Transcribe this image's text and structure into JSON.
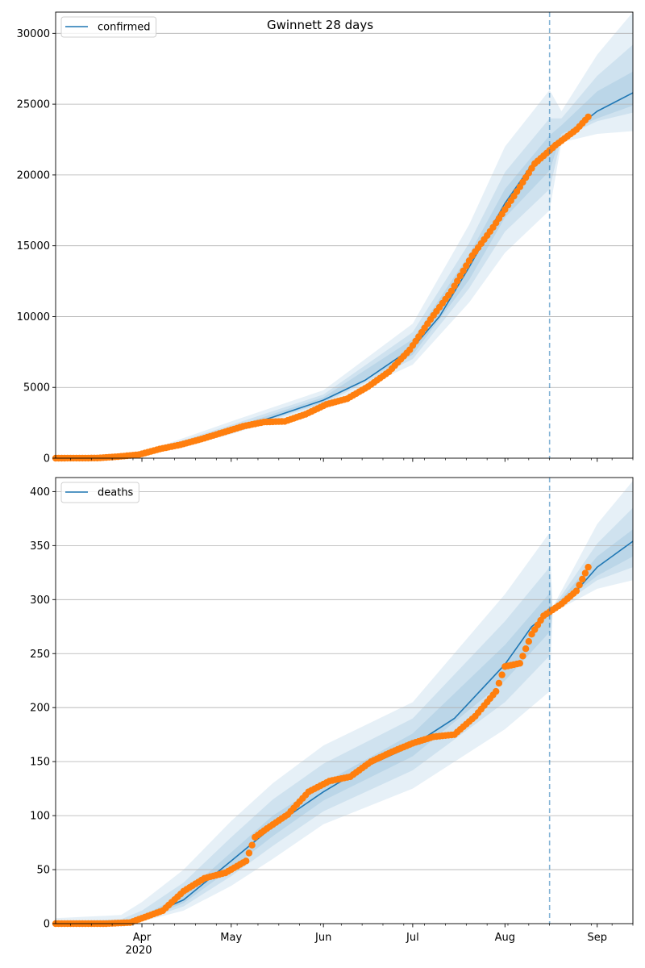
{
  "figure": {
    "title": "Gwinnett 28 days"
  },
  "colors": {
    "model": "#1f77b4",
    "observed": "#ff7f0e",
    "band": "#1f77b4",
    "grid": "#b0b0b0",
    "cutoff": "#1f77b4"
  },
  "x_axis": {
    "start": "2020-03-03",
    "end": "2020-09-13",
    "month_ticks": [
      {
        "date": "2020-04-01",
        "label": "Apr"
      },
      {
        "date": "2020-05-01",
        "label": "May"
      },
      {
        "date": "2020-06-01",
        "label": "Jun"
      },
      {
        "date": "2020-07-01",
        "label": "Jul"
      },
      {
        "date": "2020-08-01",
        "label": "Aug"
      },
      {
        "date": "2020-09-01",
        "label": "Sep"
      }
    ],
    "year_label": "2020",
    "forecast_start": "2020-08-16"
  },
  "chart_data": [
    {
      "type": "line",
      "legend": "confirmed",
      "legend_position": "top-left",
      "grid": "horizontal",
      "ylim": [
        0,
        31500
      ],
      "yticks": [
        0,
        5000,
        10000,
        15000,
        20000,
        25000,
        30000
      ],
      "model": {
        "x": [
          "2020-03-03",
          "2020-03-20",
          "2020-04-01",
          "2020-04-15",
          "2020-05-01",
          "2020-05-15",
          "2020-06-01",
          "2020-06-15",
          "2020-07-01",
          "2020-07-10",
          "2020-07-20",
          "2020-08-01",
          "2020-08-10",
          "2020-08-16",
          "2020-08-23",
          "2020-09-01",
          "2020-09-13"
        ],
        "y": [
          0,
          20,
          250,
          900,
          2000,
          2900,
          4100,
          5500,
          7800,
          10000,
          13500,
          18000,
          20700,
          21500,
          23000,
          24500,
          25800
        ]
      },
      "bands": [
        {
          "x": [
            "2020-03-03",
            "2020-04-01",
            "2020-05-01",
            "2020-06-01",
            "2020-07-01",
            "2020-07-20",
            "2020-08-01",
            "2020-08-16",
            "2020-08-20",
            "2020-09-01",
            "2020-09-13"
          ],
          "lower": [
            0,
            150,
            1700,
            3700,
            6600,
            11000,
            14500,
            17500,
            22300,
            22900,
            23100
          ],
          "upper": [
            0,
            400,
            2600,
            4800,
            9500,
            16500,
            22000,
            26000,
            24500,
            28500,
            31500
          ]
        },
        {
          "x": [
            "2020-03-03",
            "2020-04-01",
            "2020-05-01",
            "2020-06-01",
            "2020-07-01",
            "2020-07-20",
            "2020-08-01",
            "2020-08-16",
            "2020-08-20",
            "2020-09-01",
            "2020-09-13"
          ],
          "lower": [
            0,
            180,
            1800,
            3850,
            7000,
            12000,
            16000,
            19000,
            22600,
            23800,
            24400
          ],
          "upper": [
            0,
            340,
            2350,
            4500,
            8900,
            15200,
            20200,
            24000,
            24000,
            27000,
            29200
          ]
        },
        {
          "x": [
            "2020-03-03",
            "2020-04-01",
            "2020-05-01",
            "2020-06-01",
            "2020-07-01",
            "2020-07-20",
            "2020-08-01",
            "2020-08-16",
            "2020-08-20",
            "2020-09-01",
            "2020-09-13"
          ],
          "lower": [
            0,
            210,
            1900,
            3950,
            7300,
            12600,
            17000,
            20300,
            22900,
            24000,
            24900
          ],
          "upper": [
            0,
            300,
            2150,
            4300,
            8400,
            14400,
            19000,
            22800,
            23500,
            25900,
            27300
          ]
        }
      ],
      "observed": {
        "x": [
          "2020-03-03",
          "2020-03-10",
          "2020-03-17",
          "2020-03-24",
          "2020-03-31",
          "2020-04-07",
          "2020-04-14",
          "2020-04-21",
          "2020-04-28",
          "2020-05-05",
          "2020-05-12",
          "2020-05-19",
          "2020-05-26",
          "2020-06-02",
          "2020-06-09",
          "2020-06-16",
          "2020-06-23",
          "2020-06-30",
          "2020-07-07",
          "2020-07-14",
          "2020-07-21",
          "2020-07-28",
          "2020-08-04",
          "2020-08-11",
          "2020-08-18",
          "2020-08-25",
          "2020-08-29"
        ],
        "y": [
          0,
          5,
          10,
          110,
          250,
          650,
          950,
          1350,
          1800,
          2250,
          2550,
          2600,
          3100,
          3800,
          4200,
          5050,
          6100,
          7650,
          9800,
          11800,
          14300,
          16300,
          18500,
          20800,
          22100,
          23200,
          24100
        ]
      }
    },
    {
      "type": "line",
      "legend": "deaths",
      "legend_position": "top-left",
      "grid": "horizontal",
      "ylim": [
        0,
        413
      ],
      "yticks": [
        0,
        50,
        100,
        150,
        200,
        250,
        300,
        350,
        400
      ],
      "model": {
        "x": [
          "2020-03-03",
          "2020-03-25",
          "2020-04-01",
          "2020-04-15",
          "2020-05-01",
          "2020-05-15",
          "2020-06-01",
          "2020-06-15",
          "2020-07-01",
          "2020-07-15",
          "2020-08-01",
          "2020-08-10",
          "2020-08-16",
          "2020-08-24",
          "2020-09-01",
          "2020-09-13"
        ],
        "y": [
          0,
          1,
          5,
          22,
          58,
          90,
          122,
          145,
          165,
          190,
          240,
          275,
          288,
          305,
          330,
          354
        ]
      },
      "bands": [
        {
          "x": [
            "2020-03-03",
            "2020-03-25",
            "2020-04-01",
            "2020-04-15",
            "2020-05-01",
            "2020-05-15",
            "2020-06-01",
            "2020-07-01",
            "2020-08-01",
            "2020-08-16",
            "2020-08-17",
            "2020-09-01",
            "2020-09-13"
          ],
          "lower": [
            0,
            0,
            2,
            12,
            35,
            60,
            92,
            125,
            180,
            215,
            288,
            310,
            318
          ],
          "upper": [
            5,
            8,
            20,
            50,
            95,
            130,
            165,
            205,
            305,
            362,
            293,
            370,
            410
          ]
        },
        {
          "x": [
            "2020-03-03",
            "2020-03-25",
            "2020-04-01",
            "2020-04-15",
            "2020-05-01",
            "2020-05-15",
            "2020-06-01",
            "2020-07-01",
            "2020-08-01",
            "2020-08-16",
            "2020-08-17",
            "2020-09-01",
            "2020-09-13"
          ],
          "lower": [
            0,
            0,
            3,
            16,
            44,
            72,
            104,
            142,
            205,
            248,
            289,
            318,
            330
          ],
          "upper": [
            2,
            4,
            12,
            38,
            80,
            115,
            148,
            190,
            280,
            330,
            292,
            352,
            385
          ]
        },
        {
          "x": [
            "2020-03-03",
            "2020-03-25",
            "2020-04-01",
            "2020-04-15",
            "2020-05-01",
            "2020-05-15",
            "2020-06-01",
            "2020-07-01",
            "2020-08-01",
            "2020-08-16",
            "2020-08-17",
            "2020-09-01",
            "2020-09-13"
          ],
          "lower": [
            0,
            0,
            4,
            19,
            51,
            81,
            114,
            155,
            225,
            270,
            290,
            322,
            340
          ],
          "upper": [
            1,
            2,
            7,
            27,
            66,
            100,
            130,
            176,
            258,
            306,
            291,
            340,
            365
          ]
        }
      ],
      "observed": {
        "x": [
          "2020-03-03",
          "2020-03-20",
          "2020-03-28",
          "2020-04-01",
          "2020-04-08",
          "2020-04-15",
          "2020-04-22",
          "2020-04-29",
          "2020-05-06",
          "2020-05-09",
          "2020-05-13",
          "2020-05-20",
          "2020-05-27",
          "2020-06-03",
          "2020-06-10",
          "2020-06-17",
          "2020-06-24",
          "2020-07-01",
          "2020-07-08",
          "2020-07-15",
          "2020-07-22",
          "2020-07-29",
          "2020-08-01",
          "2020-08-06",
          "2020-08-10",
          "2020-08-14",
          "2020-08-20",
          "2020-08-25",
          "2020-08-29"
        ],
        "y": [
          0,
          0,
          1,
          5,
          12,
          30,
          42,
          47,
          58,
          80,
          88,
          101,
          122,
          132,
          136,
          150,
          159,
          167,
          173,
          175,
          192,
          215,
          238,
          241,
          268,
          285,
          296,
          308,
          330
        ]
      }
    }
  ]
}
